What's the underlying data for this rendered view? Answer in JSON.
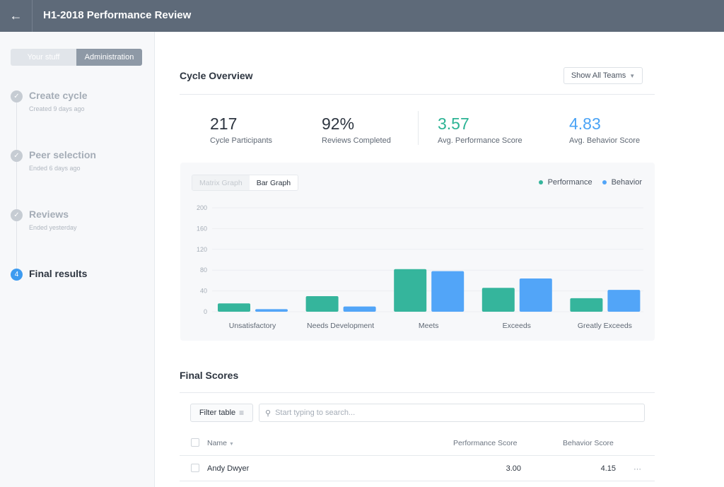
{
  "header": {
    "title": "H1-2018 Performance Review",
    "back_icon": "arrow-left-icon"
  },
  "sidebar": {
    "tabs": [
      {
        "label": "Your stuff",
        "active": false
      },
      {
        "label": "Administration",
        "active": true
      }
    ],
    "steps": [
      {
        "label": "Create cycle",
        "sub": "Created 9 days ago",
        "status": "done"
      },
      {
        "label": "Peer selection",
        "sub": "Ended 6 days ago",
        "status": "done"
      },
      {
        "label": "Reviews",
        "sub": "Ended yesterday",
        "status": "done"
      },
      {
        "label": "Final results",
        "number": "4",
        "status": "current"
      }
    ]
  },
  "overview": {
    "title": "Cycle Overview",
    "teams_dropdown": "Show All Teams",
    "stats": [
      {
        "value": "217",
        "label": "Cycle Participants",
        "color": "#2d3540"
      },
      {
        "value": "92%",
        "label": "Reviews Completed",
        "color": "#2d3540"
      },
      {
        "value": "3.57",
        "label": "Avg. Performance Score",
        "color": "#2bb394"
      },
      {
        "value": "4.83",
        "label": "Avg. Behavior Score",
        "color": "#4aa3f5"
      }
    ],
    "graph_tabs": [
      {
        "label": "Matrix Graph",
        "active": false
      },
      {
        "label": "Bar Graph",
        "active": true
      }
    ]
  },
  "chart_data": {
    "type": "bar",
    "categories": [
      "Unsatisfactory",
      "Needs Development",
      "Meets",
      "Exceeds",
      "Greatly Exceeds"
    ],
    "series": [
      {
        "name": "Performance",
        "color": "#35b59c",
        "values": [
          16,
          30,
          82,
          46,
          26
        ]
      },
      {
        "name": "Behavior",
        "color": "#52a5f8",
        "values": [
          5,
          10,
          78,
          64,
          42
        ]
      }
    ],
    "yticks": [
      "0",
      "40",
      "80",
      "120",
      "160",
      "200"
    ],
    "ylim": [
      0,
      200
    ],
    "grid": true,
    "legend": "top-right"
  },
  "scores": {
    "title": "Final Scores",
    "filter_label": "Filter table",
    "search_placeholder": "Start typing to search...",
    "columns": [
      "Name",
      "Performance Score",
      "Behavior Score"
    ],
    "rows": [
      {
        "name": "Andy Dwyer",
        "performance": "3.00",
        "behavior": "4.15"
      }
    ]
  }
}
